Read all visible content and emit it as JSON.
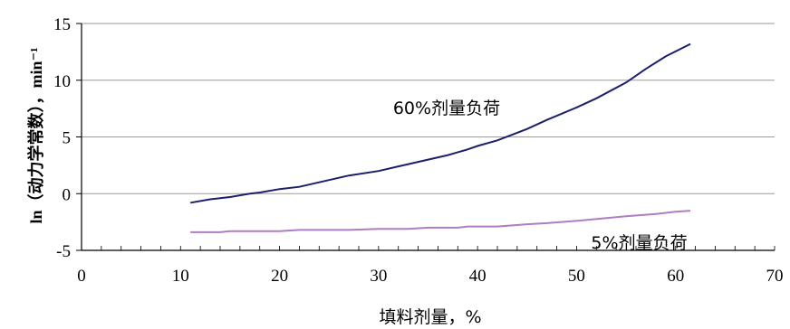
{
  "chart_data": {
    "type": "line",
    "title": "",
    "xlabel": "填料剂量，%",
    "ylabel": "ln（动力学常数），min⁻¹",
    "xlim": [
      0,
      70
    ],
    "ylim": [
      -5,
      15
    ],
    "x_ticks": [
      "0",
      "10",
      "20",
      "30",
      "40",
      "50",
      "60",
      "70"
    ],
    "y_ticks": [
      "-5",
      "0",
      "5",
      "10",
      "15"
    ],
    "grid": "horizontal",
    "annotations": [
      {
        "text": "60%剂量负荷",
        "x": 30,
        "y": 7.6
      },
      {
        "text": "5%剂量负荷",
        "x": 50,
        "y": -4.3
      }
    ],
    "colors": {
      "high_load": "#1c1f6b",
      "low_load": "#b07cc3"
    },
    "series": [
      {
        "label": "60%剂量负荷",
        "x": [
          11,
          13,
          15,
          17,
          18,
          20,
          22,
          25,
          27,
          30,
          32,
          35,
          37,
          39,
          40,
          42,
          45,
          47,
          50,
          52,
          55,
          57,
          59,
          61.5
        ],
        "y": [
          -0.8,
          -0.5,
          -0.3,
          0.0,
          0.1,
          0.4,
          0.6,
          1.2,
          1.6,
          2.0,
          2.4,
          3.0,
          3.4,
          3.9,
          4.2,
          4.7,
          5.7,
          6.5,
          7.6,
          8.4,
          9.8,
          11.0,
          12.1,
          13.2
        ]
      },
      {
        "label": "5%剂量负荷",
        "x": [
          11,
          14,
          15,
          20,
          22,
          27,
          30,
          33,
          35,
          38,
          39,
          42,
          45,
          47,
          50,
          55,
          58,
          60,
          61.5
        ],
        "y": [
          -3.4,
          -3.4,
          -3.3,
          -3.3,
          -3.2,
          -3.2,
          -3.1,
          -3.1,
          -3.0,
          -3.0,
          -2.9,
          -2.9,
          -2.7,
          -2.6,
          -2.4,
          -2.0,
          -1.8,
          -1.6,
          -1.5
        ]
      }
    ]
  }
}
